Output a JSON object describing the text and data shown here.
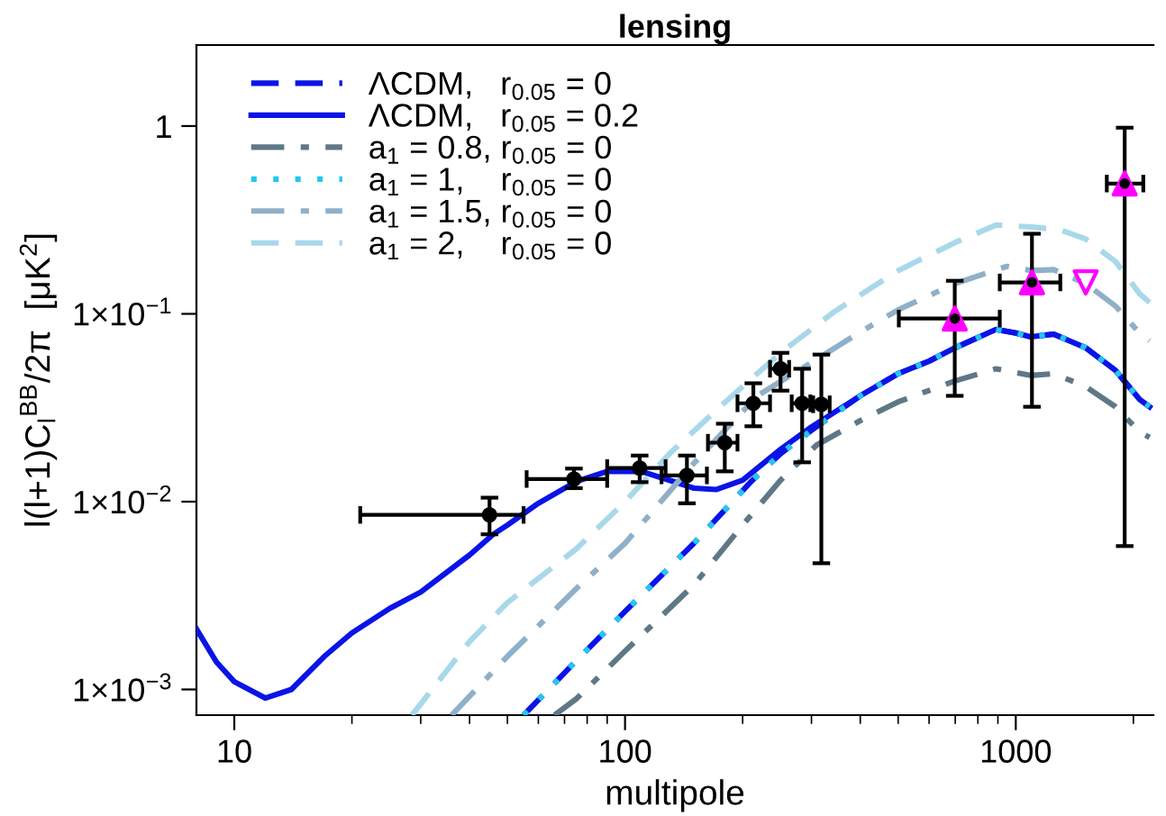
{
  "chart_data": {
    "type": "line",
    "title": "lensing",
    "xlabel": "multipole",
    "ylabel": "l(l+1)C$_{l}$$^{BB}$/2π  [μK$^{2}$]",
    "log": "xy",
    "xlim": [
      8,
      2250
    ],
    "ylim": [
      0.00073,
      2.7
    ],
    "xticks": [
      {
        "value": 10,
        "label": "10"
      },
      {
        "value": 20,
        "label": null
      },
      {
        "value": 30,
        "label": null
      },
      {
        "value": 40,
        "label": null
      },
      {
        "value": 50,
        "label": null
      },
      {
        "value": 60,
        "label": null
      },
      {
        "value": 70,
        "label": null
      },
      {
        "value": 80,
        "label": null
      },
      {
        "value": 90,
        "label": null
      },
      {
        "value": 100,
        "label": "100"
      },
      {
        "value": 200,
        "label": null
      },
      {
        "value": 300,
        "label": null
      },
      {
        "value": 400,
        "label": null
      },
      {
        "value": 500,
        "label": null
      },
      {
        "value": 600,
        "label": null
      },
      {
        "value": 700,
        "label": null
      },
      {
        "value": 800,
        "label": null
      },
      {
        "value": 900,
        "label": null
      },
      {
        "value": 1000,
        "label": "1000"
      },
      {
        "value": 2000,
        "label": null
      }
    ],
    "yticks": [
      {
        "value": 0.001,
        "label": "1×10$^{−3}$"
      },
      {
        "value": 0.01,
        "label": "1×10$^{−2}$"
      },
      {
        "value": 0.1,
        "label": "1×10$^{−1}$"
      },
      1
    ],
    "grid": false,
    "legend": "top left",
    "marker": "none",
    "series": [
      {
        "name": "ΛCDM,   r$_{0.05}$ = 0",
        "line_style": "dashed",
        "color": "#0a14e6",
        "x": [
          55,
          75,
          100,
          150,
          211,
          250,
          300,
          400,
          500,
          600,
          700,
          890,
          1000,
          1090,
          1250,
          1510,
          1800,
          2075,
          2200
        ],
        "values": [
          0.00073,
          0.00142,
          0.0026,
          0.006,
          0.0129,
          0.018,
          0.024,
          0.0366,
          0.048,
          0.056,
          0.066,
          0.0826,
          0.079,
          0.0755,
          0.078,
          0.066,
          0.05,
          0.035,
          0.032
        ]
      },
      {
        "name": "ΛCDM,   r$_{0.05}$ = 0.2",
        "line_style": "solid",
        "color": "#0a14e6",
        "x": [
          8,
          9,
          10,
          12,
          14,
          17,
          20,
          25,
          30,
          40,
          46,
          50,
          60,
          75,
          90,
          110,
          130,
          150,
          171,
          200,
          250,
          300,
          400,
          500,
          600,
          700,
          890,
          1000,
          1090,
          1250,
          1510,
          1800,
          2075,
          2200
        ],
        "values": [
          0.0021,
          0.0014,
          0.0011,
          0.0009,
          0.001,
          0.0015,
          0.002,
          0.0027,
          0.0033,
          0.0052,
          0.0067,
          0.0075,
          0.0098,
          0.0128,
          0.0145,
          0.0145,
          0.013,
          0.0118,
          0.0116,
          0.013,
          0.019,
          0.025,
          0.0366,
          0.048,
          0.056,
          0.066,
          0.0826,
          0.079,
          0.0755,
          0.078,
          0.066,
          0.05,
          0.035,
          0.032
        ]
      },
      {
        "name": "a$_{1}$ = 0.8, r$_{0.05}$ = 0",
        "line_style": "dashdot",
        "color": "#5f7888",
        "x": [
          66,
          75,
          100,
          150,
          200,
          250,
          309,
          400,
          500,
          700,
          890,
          1090,
          1250,
          1510,
          1800,
          2075,
          2200
        ],
        "values": [
          0.00073,
          0.00089,
          0.0016,
          0.0036,
          0.0075,
          0.013,
          0.02,
          0.027,
          0.034,
          0.044,
          0.051,
          0.047,
          0.048,
          0.041,
          0.032,
          0.0235,
          0.022
        ]
      },
      {
        "name": "a$_{1}$ = 1,    r$_{0.05}$ = 0",
        "line_style": "dotted",
        "color": "#22c8f0",
        "x": [
          55,
          75,
          100,
          150,
          211,
          250,
          300,
          400,
          500,
          600,
          700,
          890,
          1000,
          1090,
          1250,
          1510,
          1800,
          2075,
          2200
        ],
        "values": [
          0.00073,
          0.00142,
          0.0026,
          0.006,
          0.0129,
          0.018,
          0.024,
          0.0366,
          0.048,
          0.056,
          0.066,
          0.0826,
          0.079,
          0.0755,
          0.078,
          0.066,
          0.05,
          0.035,
          0.032
        ]
      },
      {
        "name": "a$_{1}$ = 1.5, r$_{0.05}$ = 0",
        "line_style": "dashdot",
        "color": "#8fb0c8",
        "x": [
          36,
          50,
          75,
          100,
          150,
          218,
          300,
          400,
          500,
          700,
          950,
          1100,
          1250,
          1510,
          1800,
          2075,
          2200
        ],
        "values": [
          0.00073,
          0.0015,
          0.00344,
          0.006,
          0.016,
          0.0366,
          0.055,
          0.08,
          0.105,
          0.145,
          0.179,
          0.17,
          0.172,
          0.145,
          0.11,
          0.079,
          0.072
        ]
      },
      {
        "name": "a$_{1}$ = 2,    r$_{0.05}$ = 0",
        "line_style": "dashed",
        "color": "#a8d8ea",
        "x": [
          28.5,
          40,
          50,
          75,
          100,
          130,
          175,
          250,
          344,
          500,
          700,
          890,
          1100,
          1300,
          1510,
          1800,
          2075,
          2200
        ],
        "values": [
          0.00073,
          0.0018,
          0.0029,
          0.0056,
          0.01,
          0.018,
          0.032,
          0.062,
          0.103,
          0.17,
          0.24,
          0.297,
          0.29,
          0.28,
          0.25,
          0.19,
          0.128,
          0.115
        ]
      },
      {
        "type": "scatter",
        "marker": "circle",
        "color": "#000000",
        "x": [
          45,
          74,
          109,
          144,
          180,
          213,
          250,
          284,
          318
        ],
        "values": [
          0.0085,
          0.0132,
          0.0151,
          0.0138,
          0.0206,
          0.0334,
          0.051,
          0.0334,
          0.033
        ],
        "errors": [
          [
            0.0067,
            0.0105
          ],
          [
            0.0118,
            0.015
          ],
          [
            0.0127,
            0.0176
          ],
          [
            0.0098,
            0.0176
          ],
          [
            0.0145,
            0.026
          ],
          [
            0.0252,
            0.0427
          ],
          [
            0.039,
            0.062
          ],
          [
            0.0162,
            0.051
          ],
          [
            0.0047,
            0.0607
          ]
        ],
        "xerrors": [
          [
            21,
            55
          ],
          [
            56,
            90
          ],
          [
            90,
            127
          ],
          [
            124,
            162
          ],
          [
            163,
            194
          ],
          [
            194,
            235
          ],
          [
            235,
            263
          ],
          [
            267,
            298
          ],
          [
            303,
            334
          ]
        ]
      },
      {
        "type": "scatter",
        "marker": "triangle",
        "color": "#ff00ff",
        "x": [
          698,
          1100,
          1900
        ],
        "values": [
          0.0944,
          0.147,
          0.494
        ],
        "errors": [
          [
            0.0366,
            0.15
          ],
          [
            0.032,
            0.267
          ],
          [
            0.0058,
            0.98
          ]
        ],
        "xerrors": [
          [
            502,
            910
          ],
          [
            910,
            1300
          ],
          [
            1710,
            2120
          ]
        ]
      },
      {
        "type": "scatter",
        "marker": "triangle_down",
        "color": "#ff00ff",
        "x": [
          1510
        ],
        "values": [
          0.147
        ]
      }
    ]
  }
}
